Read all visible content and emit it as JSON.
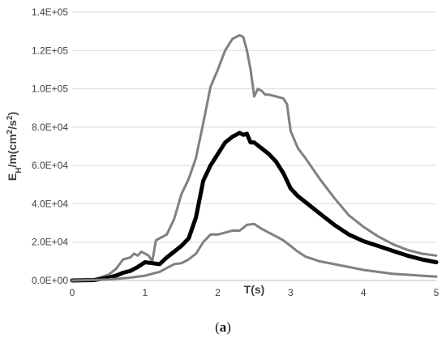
{
  "caption": {
    "open": "(",
    "letter": "a",
    "close": ")"
  },
  "chart_data": {
    "type": "line",
    "xlabel": "T(s)",
    "ylabel_parts": {
      "base": "E",
      "sub": "H",
      "mid": "/m(cm",
      "sup": "2",
      "end": "/s",
      "sup2": "2",
      "close": ")"
    },
    "xlim": [
      0,
      5
    ],
    "ylim": [
      0,
      140000
    ],
    "x_ticks": [
      {
        "value": 0,
        "label": "0"
      },
      {
        "value": 1,
        "label": "1"
      },
      {
        "value": 2,
        "label": "2"
      },
      {
        "value": 3,
        "label": "3"
      },
      {
        "value": 4,
        "label": "4"
      },
      {
        "value": 5,
        "label": "5"
      }
    ],
    "y_ticks": [
      {
        "value": 0,
        "label": "0.0E+00"
      },
      {
        "value": 20000,
        "label": "2.0E+04"
      },
      {
        "value": 40000,
        "label": "4.0E+04"
      },
      {
        "value": 60000,
        "label": "6.0E+04"
      },
      {
        "value": 80000,
        "label": "8.0E+04"
      },
      {
        "value": 100000,
        "label": "1.0E+05"
      },
      {
        "value": 120000,
        "label": "1.2E+05"
      },
      {
        "value": 140000,
        "label": "1.4E+05"
      }
    ],
    "grid": "horizontal",
    "legend": "none",
    "series": [
      {
        "color": "#808080",
        "stroke_width": 3,
        "x": [
          0,
          0.3,
          0.5,
          0.6,
          0.7,
          0.8,
          0.85,
          0.9,
          0.95,
          1.0,
          1.05,
          1.1,
          1.15,
          1.2,
          1.3,
          1.4,
          1.5,
          1.6,
          1.7,
          1.8,
          1.9,
          2.0,
          2.1,
          2.2,
          2.3,
          2.35,
          2.4,
          2.45,
          2.5,
          2.55,
          2.6,
          2.65,
          2.7,
          2.8,
          2.9,
          2.95,
          3.0,
          3.1,
          3.2,
          3.4,
          3.6,
          3.8,
          4.0,
          4.2,
          4.4,
          4.6,
          4.8,
          5.0
        ],
        "y": [
          0,
          500,
          3000,
          6000,
          11000,
          12000,
          14000,
          13000,
          15000,
          14000,
          13000,
          10000,
          21000,
          22000,
          24000,
          32000,
          45000,
          53000,
          64000,
          82000,
          101000,
          110000,
          120000,
          126000,
          128000,
          127000,
          120000,
          110000,
          96000,
          100000,
          99000,
          97000,
          97000,
          96000,
          95000,
          92000,
          78000,
          69000,
          64000,
          53000,
          43000,
          34000,
          28000,
          23000,
          19000,
          16000,
          14000,
          13000
        ]
      },
      {
        "color": "#000000",
        "stroke_width": 5,
        "x": [
          0,
          0.3,
          0.5,
          0.6,
          0.7,
          0.8,
          0.9,
          1.0,
          1.1,
          1.2,
          1.3,
          1.4,
          1.5,
          1.6,
          1.7,
          1.8,
          1.9,
          2.0,
          2.1,
          2.2,
          2.3,
          2.35,
          2.4,
          2.45,
          2.5,
          2.6,
          2.7,
          2.8,
          2.9,
          3.0,
          3.1,
          3.2,
          3.4,
          3.6,
          3.8,
          4.0,
          4.2,
          4.4,
          4.6,
          4.8,
          5.0
        ],
        "y": [
          0,
          200,
          1500,
          2500,
          4000,
          5000,
          7000,
          9500,
          9000,
          8500,
          12000,
          15000,
          18000,
          22000,
          33000,
          52000,
          60000,
          66000,
          72000,
          75000,
          77000,
          76000,
          76500,
          72000,
          72000,
          69000,
          66000,
          62000,
          56000,
          48000,
          44000,
          41000,
          35000,
          29000,
          24000,
          20500,
          18000,
          15500,
          13000,
          11000,
          9500
        ]
      },
      {
        "color": "#808080",
        "stroke_width": 3,
        "x": [
          0,
          0.5,
          0.8,
          1.0,
          1.1,
          1.2,
          1.3,
          1.4,
          1.5,
          1.6,
          1.7,
          1.8,
          1.9,
          2.0,
          2.1,
          2.2,
          2.3,
          2.4,
          2.5,
          2.6,
          2.7,
          2.8,
          2.9,
          3.0,
          3.1,
          3.2,
          3.4,
          3.6,
          3.8,
          4.0,
          4.2,
          4.4,
          4.6,
          4.8,
          5.0
        ],
        "y": [
          0,
          500,
          1500,
          2500,
          3500,
          4500,
          6500,
          8500,
          9000,
          11000,
          14000,
          20000,
          24000,
          24000,
          25000,
          26000,
          26000,
          29000,
          29500,
          27000,
          25000,
          23000,
          21000,
          18000,
          15000,
          12500,
          10000,
          8500,
          7000,
          5500,
          4500,
          3500,
          3000,
          2500,
          2000
        ]
      }
    ]
  }
}
